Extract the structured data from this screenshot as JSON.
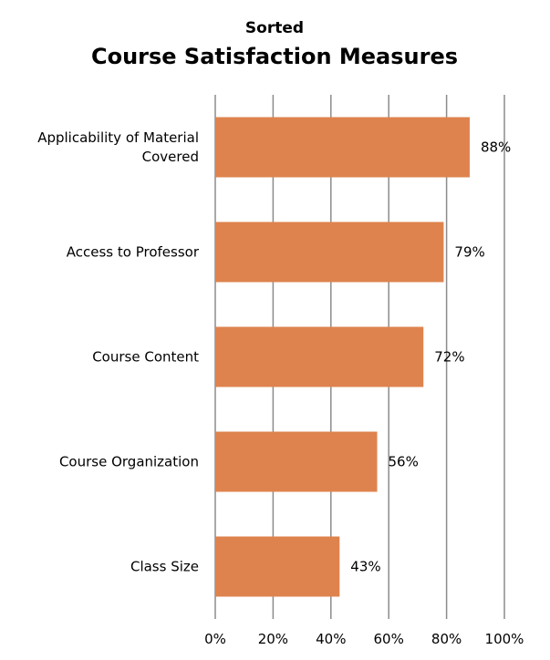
{
  "chart_data": {
    "type": "bar",
    "orientation": "horizontal",
    "subtitle": "Sorted",
    "title": "Course Satisfaction Measures",
    "categories": [
      "Applicability of Material Covered",
      "Access to Professor",
      "Course Content",
      "Course Organization",
      "Class Size"
    ],
    "category_lines": [
      [
        "Applicability of Material",
        "Covered"
      ],
      [
        "Access to Professor"
      ],
      [
        "Course Content"
      ],
      [
        "Course Organization"
      ],
      [
        "Class Size"
      ]
    ],
    "values": [
      88,
      79,
      72,
      56,
      43
    ],
    "value_labels": [
      "88%",
      "79%",
      "72%",
      "56%",
      "43%"
    ],
    "xlim": [
      0,
      100
    ],
    "xticks": [
      0,
      20,
      40,
      60,
      80,
      100
    ],
    "xtick_labels": [
      "0%",
      "20%",
      "40%",
      "60%",
      "80%",
      "100%"
    ],
    "grid": true,
    "legend": "none",
    "colors": {
      "bar": "#DE834D",
      "gridline": "#8C8C8C",
      "text": "#000000"
    }
  }
}
